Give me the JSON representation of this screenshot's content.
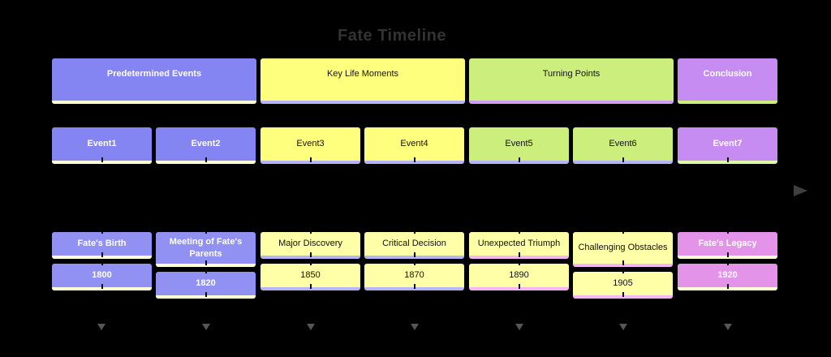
{
  "title": "Fate Timeline",
  "sections": [
    {
      "label": "Predetermined Events"
    },
    {
      "label": "Key Life Moments"
    },
    {
      "label": "Turning Points"
    },
    {
      "label": "Conclusion"
    }
  ],
  "periods": [
    {
      "label": "Event1"
    },
    {
      "label": "Event2"
    },
    {
      "label": "Event3"
    },
    {
      "label": "Event4"
    },
    {
      "label": "Event5"
    },
    {
      "label": "Event6"
    },
    {
      "label": "Event7"
    }
  ],
  "events": [
    {
      "title": "Fate's Birth",
      "year": "1800"
    },
    {
      "title": "Meeting of Fate's Parents",
      "year": "1820"
    },
    {
      "title": "Major Discovery",
      "year": "1850"
    },
    {
      "title": "Critical Decision",
      "year": "1870"
    },
    {
      "title": "Unexpected Triumph",
      "year": "1890"
    },
    {
      "title": "Challenging Obstacles",
      "year": "1905"
    },
    {
      "title": "Fate's Legacy",
      "year": "1920"
    }
  ],
  "icons": {
    "axis_arrow": "right-arrowhead",
    "column_arrow": "down-arrowhead"
  },
  "colors": {
    "bg": "#000000",
    "titleText": "#333333",
    "axisArrow": "#3f3f3f",
    "colArrow": "#565656",
    "textLight": "#ffffff",
    "textDark": "#111111",
    "purple": "#8484f2",
    "yellow": "#ffff7e",
    "green": "#cbee7d",
    "orchid": "#c68cf2",
    "purpleLight": "#9191f4",
    "yellowLight": "#ffffa8",
    "plum": "#e394e9",
    "stripCream": "#ffffd6",
    "stripLav": "#b4b4f6",
    "stripPink": "#f4b6f4",
    "stripPaleGreen": "#dff7a6",
    "stripOrchid": "#cf9ef2",
    "stripGreen": "#cbee7d"
  }
}
